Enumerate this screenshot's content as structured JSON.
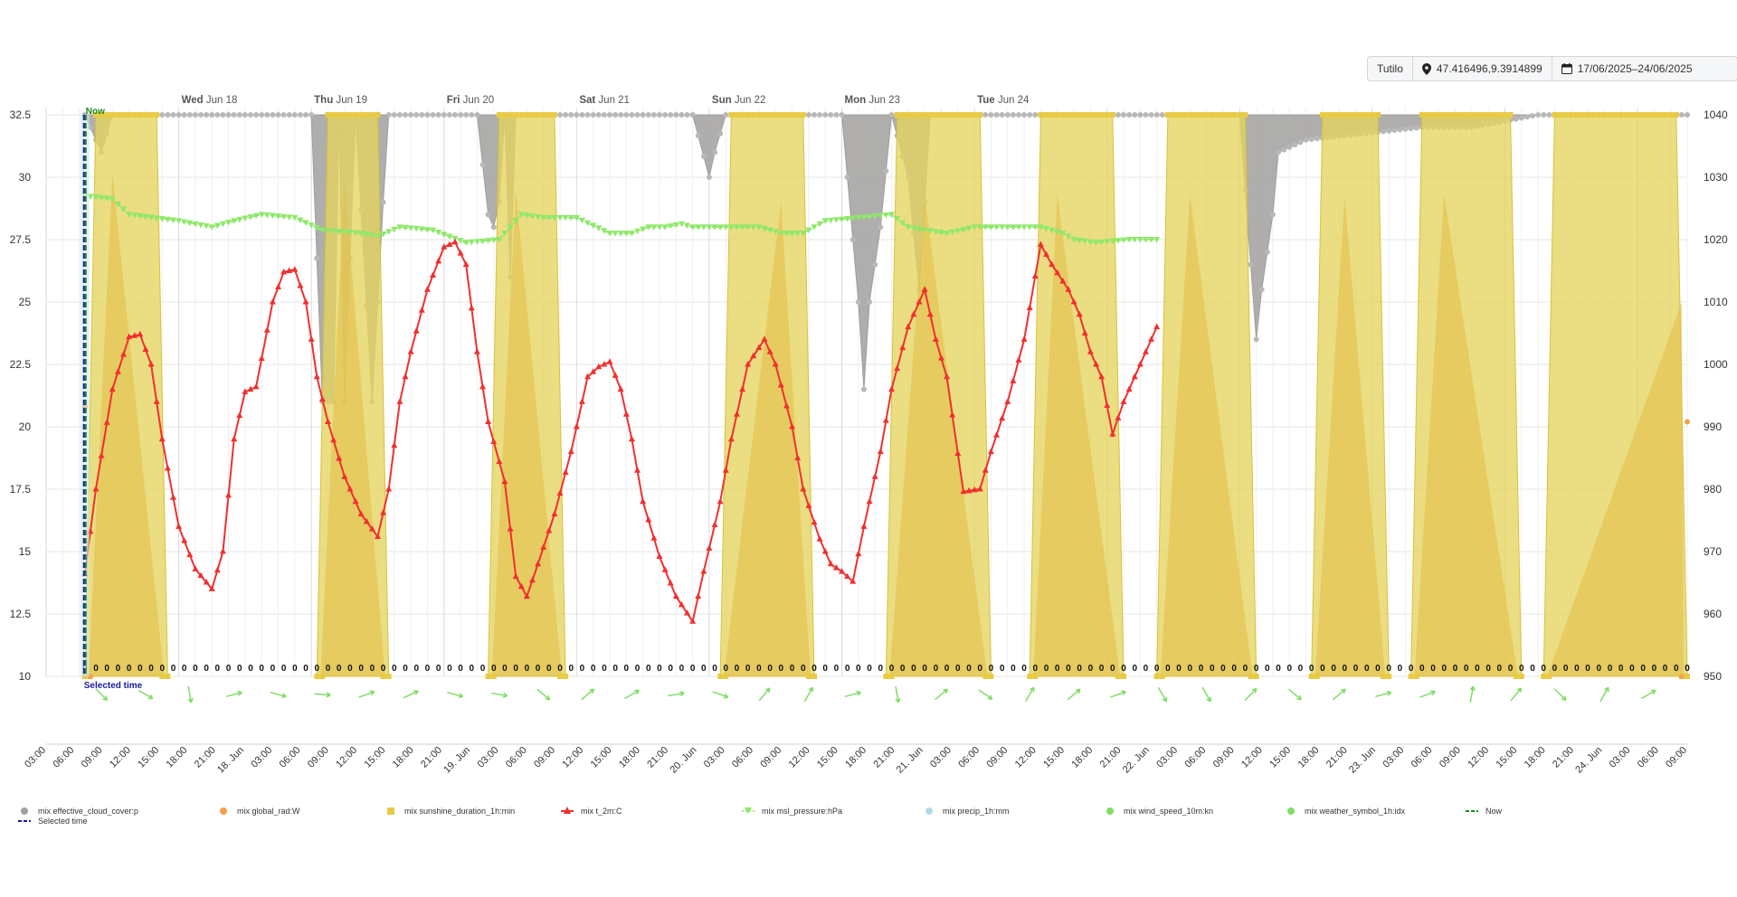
{
  "toolbar": {
    "location_name": "Tutilo",
    "coordinates": "47.416496,9.3914899",
    "date_range": "17/06/2025–24/06/2025"
  },
  "markers": {
    "now_label": "Now",
    "selected_label": "Selected time"
  },
  "chart_data": {
    "type": "line",
    "y_left": {
      "ticks": [
        "32.5",
        "30",
        "27.5",
        "25",
        "22.5",
        "20",
        "17.5",
        "15",
        "12.5",
        "10"
      ],
      "range": [
        10,
        32.5
      ]
    },
    "y_right": {
      "ticks": [
        "1040",
        "1030",
        "1020",
        "1010",
        "1000",
        "990",
        "980",
        "970",
        "960",
        "950"
      ],
      "range": [
        950,
        1040
      ]
    },
    "x_hour_labels": [
      "03:00",
      "06:00",
      "09:00",
      "12:00",
      "15:00",
      "18:00",
      "21:00",
      "18. Jun",
      "03:00",
      "06:00",
      "09:00",
      "12:00",
      "15:00",
      "18:00",
      "21:00",
      "19. Jun",
      "03:00",
      "06:00",
      "09:00",
      "12:00",
      "15:00",
      "18:00",
      "21:00",
      "20. Jun",
      "03:00",
      "06:00",
      "09:00",
      "12:00",
      "15:00",
      "18:00",
      "21:00",
      "21. Jun",
      "03:00",
      "06:00",
      "09:00",
      "12:00",
      "15:00",
      "18:00",
      "21:00",
      "22. Jun",
      "03:00",
      "06:00",
      "09:00",
      "12:00",
      "15:00",
      "18:00",
      "21:00",
      "23. Jun",
      "03:00",
      "06:00",
      "09:00",
      "12:00",
      "15:00",
      "18:00",
      "21:00",
      "24. Jun",
      "03:00",
      "06:00",
      "09:00"
    ],
    "day_labels": [
      {
        "dow": "Wed",
        "date": "Jun 18"
      },
      {
        "dow": "Thu",
        "date": "Jun 19"
      },
      {
        "dow": "Fri",
        "date": "Jun 20"
      },
      {
        "dow": "Sat",
        "date": "Jun 21"
      },
      {
        "dow": "Sun",
        "date": "Jun 22"
      },
      {
        "dow": "Mon",
        "date": "Jun 23"
      },
      {
        "dow": "Tue",
        "date": "Jun 24"
      }
    ],
    "x_start": "2025-06-17 00:00",
    "x_end": "2025-06-24 09:00",
    "now": "2025-06-17 07:00",
    "selected_time": "2025-06-17 07:00",
    "precip_value": "0",
    "series": [
      {
        "name": "mix effective_cloud_cover:p",
        "color": "#a0a0a0",
        "marker": "circle",
        "axis": "left",
        "keys": [
          [
            7,
            32.5
          ],
          [
            10,
            31
          ],
          [
            12,
            32.5
          ],
          [
            48,
            32.5
          ],
          [
            50,
            21
          ],
          [
            52,
            21
          ],
          [
            53,
            32.5
          ],
          [
            54,
            21
          ],
          [
            56,
            32.5
          ],
          [
            59,
            21
          ],
          [
            61,
            29
          ],
          [
            62,
            32.5
          ],
          [
            78,
            32.5
          ],
          [
            80,
            28.5
          ],
          [
            81,
            28
          ],
          [
            82,
            29
          ],
          [
            83,
            32.5
          ],
          [
            84,
            26
          ],
          [
            85,
            32.5
          ],
          [
            117,
            32.5
          ],
          [
            120,
            30
          ],
          [
            121,
            31
          ],
          [
            123,
            32.5
          ],
          [
            144,
            32.5
          ],
          [
            147,
            25
          ],
          [
            148,
            21.5
          ],
          [
            149,
            25
          ],
          [
            151,
            28
          ],
          [
            153,
            32.5
          ],
          [
            156,
            30
          ],
          [
            158,
            25.5
          ],
          [
            160,
            32.5
          ],
          [
            216,
            32.5
          ],
          [
            218,
            26.5
          ],
          [
            219,
            23.5
          ],
          [
            220,
            25.5
          ],
          [
            222,
            28.5
          ],
          [
            223,
            31
          ],
          [
            228,
            31.5
          ],
          [
            249,
            32
          ],
          [
            258,
            32
          ],
          [
            270,
            32.5
          ],
          [
            297,
            32.5
          ]
        ]
      },
      {
        "name": "mix global_rad:W",
        "color": "#f5a04a",
        "marker": "circle",
        "axis": "left",
        "keys": [
          [
            7,
            20.8
          ],
          [
            8,
            10
          ],
          [
            296,
            10
          ],
          [
            297,
            20.2
          ]
        ]
      },
      {
        "name": "mix sunshine_duration_1h:min",
        "color": "#e8cb45",
        "marker": "square",
        "axis": "left",
        "area_fill": "#e6d45d",
        "peak_color": "#e3c04c",
        "periods": [
          {
            "start": 7,
            "end": 22,
            "peak_t": 12,
            "peak_v": 30.1
          },
          {
            "start": 49,
            "end": 62,
            "peak_t": 54,
            "peak_v": 29.8
          },
          {
            "start": 80,
            "end": 94,
            "peak_t": 85,
            "peak_v": 29.5
          },
          {
            "start": 122,
            "end": 139,
            "peak_t": 133,
            "peak_v": 29
          },
          {
            "start": 152,
            "end": 171,
            "peak_t": 159,
            "peak_v": 29.2
          },
          {
            "start": 178,
            "end": 195,
            "peak_t": 183,
            "peak_v": 29.3
          },
          {
            "start": 201,
            "end": 219,
            "peak_t": 207,
            "peak_v": 29.3
          },
          {
            "start": 229,
            "end": 243,
            "peak_t": 235,
            "peak_v": 29.2
          },
          {
            "start": 247,
            "end": 267,
            "peak_t": 253,
            "peak_v": 29.3
          },
          {
            "start": 271,
            "end": 297,
            "peak_t": 296,
            "peak_v": 25
          }
        ]
      },
      {
        "name": "mix t_2m:C",
        "color": "#f0302f",
        "marker": "triangle",
        "axis": "left",
        "keys": [
          [
            7,
            14.1
          ],
          [
            9,
            17.5
          ],
          [
            12,
            21.5
          ],
          [
            15,
            23.6
          ],
          [
            17,
            23.7
          ],
          [
            19,
            22.5
          ],
          [
            21,
            19.5
          ],
          [
            24,
            16
          ],
          [
            27,
            14.3
          ],
          [
            30,
            13.5
          ],
          [
            32,
            15
          ],
          [
            34,
            19.5
          ],
          [
            36,
            21.4
          ],
          [
            38,
            21.6
          ],
          [
            41,
            25
          ],
          [
            43,
            26.2
          ],
          [
            45,
            26.3
          ],
          [
            47,
            25
          ],
          [
            49,
            22
          ],
          [
            51,
            20.2
          ],
          [
            54,
            18
          ],
          [
            57,
            16.5
          ],
          [
            60,
            15.6
          ],
          [
            62,
            17.5
          ],
          [
            64,
            21
          ],
          [
            66,
            23
          ],
          [
            69,
            25.5
          ],
          [
            72,
            27.2
          ],
          [
            74,
            27.4
          ],
          [
            76,
            26.5
          ],
          [
            78,
            23
          ],
          [
            80,
            20.2
          ],
          [
            83,
            17.8
          ],
          [
            85,
            14
          ],
          [
            87,
            13.2
          ],
          [
            89,
            14.5
          ],
          [
            92,
            16.5
          ],
          [
            95,
            19
          ],
          [
            98,
            22
          ],
          [
            100,
            22.4
          ],
          [
            102,
            22.6
          ],
          [
            104,
            21.5
          ],
          [
            106,
            19.5
          ],
          [
            108,
            17
          ],
          [
            111,
            14.8
          ],
          [
            114,
            13.2
          ],
          [
            117,
            12.2
          ],
          [
            119,
            14.2
          ],
          [
            122,
            17
          ],
          [
            124,
            19.5
          ],
          [
            127,
            22.5
          ],
          [
            130,
            23.5
          ],
          [
            132,
            22.5
          ],
          [
            135,
            20
          ],
          [
            137,
            17.5
          ],
          [
            140,
            15.5
          ],
          [
            142,
            14.5
          ],
          [
            144,
            14.2
          ],
          [
            146,
            13.8
          ],
          [
            148,
            16
          ],
          [
            151,
            19
          ],
          [
            153,
            21.5
          ],
          [
            156,
            24
          ],
          [
            158,
            25
          ],
          [
            159,
            25.5
          ],
          [
            161,
            23.5
          ],
          [
            163,
            22
          ],
          [
            166,
            17.4
          ],
          [
            169,
            17.5
          ],
          [
            171,
            19
          ],
          [
            174,
            21
          ],
          [
            177,
            23.5
          ],
          [
            180,
            27.3
          ],
          [
            182,
            26.5
          ],
          [
            185,
            25.5
          ],
          [
            187,
            24.5
          ],
          [
            189,
            23
          ],
          [
            191,
            22
          ],
          [
            193,
            19.7
          ],
          [
            195,
            21
          ],
          [
            198,
            22.5
          ],
          [
            201,
            24
          ]
        ]
      },
      {
        "name": "mix msl_pressure:hPa",
        "color": "#8ee86a",
        "marker": "triangle-down",
        "axis": "right",
        "keys": [
          [
            7,
            1027
          ],
          [
            12,
            1026.5
          ],
          [
            15,
            1024
          ],
          [
            24,
            1023
          ],
          [
            30,
            1022
          ],
          [
            34,
            1023
          ],
          [
            39,
            1024
          ],
          [
            45,
            1023.5
          ],
          [
            50,
            1021.5
          ],
          [
            57,
            1021
          ],
          [
            60,
            1020.5
          ],
          [
            64,
            1022
          ],
          [
            70,
            1021.5
          ],
          [
            76,
            1019.5
          ],
          [
            82,
            1020
          ],
          [
            86,
            1024
          ],
          [
            90,
            1023.5
          ],
          [
            96,
            1023.5
          ],
          [
            102,
            1021
          ],
          [
            106,
            1021
          ],
          [
            109,
            1022
          ],
          [
            112,
            1022
          ],
          [
            115,
            1022.5
          ],
          [
            117,
            1022
          ],
          [
            121,
            1022
          ],
          [
            125,
            1022
          ],
          [
            129,
            1022
          ],
          [
            133,
            1021
          ],
          [
            137,
            1021
          ],
          [
            141,
            1023
          ],
          [
            147,
            1023.5
          ],
          [
            153,
            1024
          ],
          [
            156,
            1022
          ],
          [
            159,
            1021.5
          ],
          [
            163,
            1021
          ],
          [
            168,
            1022
          ],
          [
            174,
            1022
          ],
          [
            180,
            1022
          ],
          [
            184,
            1021
          ],
          [
            186,
            1020
          ],
          [
            190,
            1019.5
          ],
          [
            196,
            1020
          ],
          [
            201,
            1020
          ]
        ]
      },
      {
        "name": "mix precip_1h:mm",
        "color": "#b2dbe8",
        "marker": "circle",
        "axis": "left"
      },
      {
        "name": "mix wind_speed_10m:kn",
        "color": "#7fdd66",
        "marker": "circle",
        "axis": "left",
        "arrows": [
          [
            9,
            45
          ],
          [
            12,
            30
          ],
          [
            15,
            80
          ],
          [
            18,
            -15
          ],
          [
            21,
            15
          ],
          [
            24,
            5
          ],
          [
            27,
            -20
          ],
          [
            30,
            -25
          ],
          [
            33,
            15
          ],
          [
            36,
            10
          ],
          [
            39,
            40
          ],
          [
            42,
            -40
          ],
          [
            45,
            -30
          ],
          [
            48,
            -10
          ],
          [
            51,
            20
          ],
          [
            54,
            -50
          ],
          [
            57,
            -60
          ],
          [
            60,
            -15
          ],
          [
            63,
            80
          ],
          [
            66,
            -40
          ],
          [
            69,
            35
          ],
          [
            72,
            -60
          ],
          [
            75,
            -40
          ],
          [
            78,
            -20
          ],
          [
            81,
            60
          ],
          [
            84,
            60
          ],
          [
            87,
            -45
          ],
          [
            90,
            40
          ],
          [
            93,
            -40
          ],
          [
            96,
            -15
          ],
          [
            99,
            -20
          ],
          [
            102,
            -80
          ],
          [
            105,
            -50
          ],
          [
            108,
            45
          ],
          [
            111,
            -60
          ],
          [
            114,
            -30
          ]
        ]
      },
      {
        "name": "mix weather_symbol_1h:idx",
        "color": "#7fdd66",
        "marker": "circle",
        "axis": "left"
      },
      {
        "name": "Now",
        "color": "#1a8a1a",
        "marker": "dash",
        "axis": "left"
      },
      {
        "name": "Selected time",
        "color": "#1a1aa0",
        "marker": "dash",
        "axis": "left"
      }
    ]
  }
}
